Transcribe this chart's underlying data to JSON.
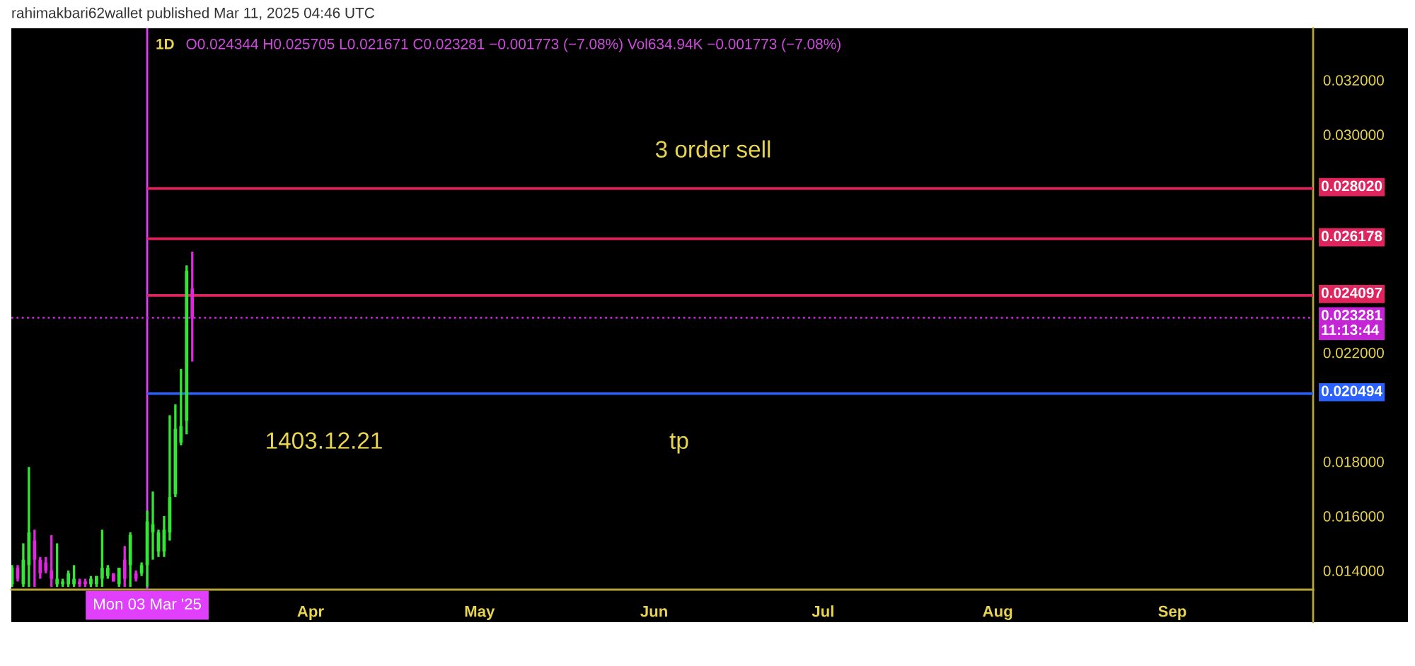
{
  "chart_data": {
    "type": "candlestick",
    "title": "1D",
    "subtitle": "O0.024344 H0.025705 L0.021671 C0.023281 −0.001773 (−7.08%) Vol634.94K −0.001773 (−7.08%)",
    "x": [
      "2025-02-07",
      "2025-02-08",
      "2025-02-09",
      "2025-02-10",
      "2025-02-11",
      "2025-02-12",
      "2025-02-13",
      "2025-02-14",
      "2025-02-15",
      "2025-02-16",
      "2025-02-17",
      "2025-02-18",
      "2025-02-19",
      "2025-02-20",
      "2025-02-21",
      "2025-02-22",
      "2025-02-23",
      "2025-02-24",
      "2025-02-25",
      "2025-02-26",
      "2025-02-27",
      "2025-02-28",
      "2025-03-01",
      "2025-03-02",
      "2025-03-03",
      "2025-03-04",
      "2025-03-05",
      "2025-03-06",
      "2025-03-07",
      "2025-03-08",
      "2025-03-09",
      "2025-03-10",
      "2025-03-11"
    ],
    "ohlc": [
      [
        0.0135,
        0.0142,
        0.0134,
        0.0141
      ],
      [
        0.0141,
        0.0142,
        0.0136,
        0.0137
      ],
      [
        0.0135,
        0.015,
        0.0134,
        0.0144
      ],
      [
        0.0142,
        0.0178,
        0.0134,
        0.0154
      ],
      [
        0.0151,
        0.0155,
        0.0134,
        0.0144
      ],
      [
        0.0144,
        0.0145,
        0.0137,
        0.0139
      ],
      [
        0.0143,
        0.0145,
        0.0139,
        0.014
      ],
      [
        0.014,
        0.0153,
        0.0134,
        0.0137
      ],
      [
        0.0135,
        0.015,
        0.0134,
        0.0137
      ],
      [
        0.0135,
        0.0137,
        0.0134,
        0.0136
      ],
      [
        0.0135,
        0.014,
        0.0134,
        0.0139
      ],
      [
        0.0135,
        0.0142,
        0.0134,
        0.0137
      ],
      [
        0.0136,
        0.0137,
        0.0134,
        0.0135
      ],
      [
        0.0136,
        0.0137,
        0.0134,
        0.0135
      ],
      [
        0.0135,
        0.0138,
        0.0134,
        0.0137
      ],
      [
        0.0135,
        0.0138,
        0.0134,
        0.0138
      ],
      [
        0.0137,
        0.0155,
        0.0134,
        0.0141
      ],
      [
        0.0138,
        0.0142,
        0.0137,
        0.0141
      ],
      [
        0.0139,
        0.0139,
        0.0136,
        0.0136
      ],
      [
        0.0135,
        0.0141,
        0.0134,
        0.0141
      ],
      [
        0.0144,
        0.0149,
        0.0134,
        0.0137
      ],
      [
        0.0142,
        0.0154,
        0.0134,
        0.0153
      ],
      [
        0.0139,
        0.014,
        0.0136,
        0.0137
      ],
      [
        0.0139,
        0.0143,
        0.0138,
        0.0142
      ],
      [
        0.0142,
        0.0162,
        0.0134,
        0.0158
      ],
      [
        0.0154,
        0.0169,
        0.0144,
        0.0157
      ],
      [
        0.0147,
        0.0155,
        0.0145,
        0.0154
      ],
      [
        0.0147,
        0.016,
        0.0145,
        0.0155
      ],
      [
        0.0154,
        0.0197,
        0.0151,
        0.0167
      ],
      [
        0.0168,
        0.0201,
        0.0167,
        0.0192
      ],
      [
        0.0187,
        0.0214,
        0.0186,
        0.0193
      ],
      [
        0.0195,
        0.0252,
        0.019,
        0.025
      ],
      [
        0.024344,
        0.025705,
        0.021671,
        0.023281
      ]
    ],
    "colors": [
      "#33e633",
      "#e026e0",
      "#33e633",
      "#33e633",
      "#e026e0",
      "#e026e0",
      "#e026e0",
      "#e026e0",
      "#33e633",
      "#33e633",
      "#33e633",
      "#33e633",
      "#e026e0",
      "#e026e0",
      "#33e633",
      "#33e633",
      "#33e633",
      "#33e633",
      "#e026e0",
      "#33e633",
      "#e026e0",
      "#33e633",
      "#e026e0",
      "#33e633",
      "#33e633",
      "#33e633",
      "#33e633",
      "#33e633",
      "#33e633",
      "#33e633",
      "#33e633",
      "#33e633",
      "#e026e0"
    ],
    "xlim": [
      "2025-02-06T21:00",
      "2025-09-26"
    ],
    "xticks": [
      {
        "value": "2025-04-01",
        "label": "Apr"
      },
      {
        "value": "2025-05-01",
        "label": "May"
      },
      {
        "value": "2025-06-01",
        "label": "Jun"
      },
      {
        "value": "2025-07-01",
        "label": "Jul"
      },
      {
        "value": "2025-08-01",
        "label": "Aug"
      },
      {
        "value": "2025-09-01",
        "label": "Sep"
      }
    ],
    "ylim": [
      0.0133,
      0.0339
    ],
    "yticks": [
      {
        "value": 0.014,
        "label": "0.014000"
      },
      {
        "value": 0.016,
        "label": "0.016000"
      },
      {
        "value": 0.018,
        "label": "0.018000"
      },
      {
        "value": 0.022,
        "label": "0.022000"
      },
      {
        "value": 0.03,
        "label": "0.030000"
      },
      {
        "value": 0.032,
        "label": "0.032000"
      }
    ],
    "ref_lines": [
      {
        "axis": "x",
        "value": "2025-03-03",
        "label": "Mon 03 Mar '25",
        "color": "#e040fb",
        "line_style": "solid"
      },
      {
        "axis": "y",
        "value": 0.02802,
        "label": "0.028020",
        "color": "#e0245e",
        "line_style": "solid"
      },
      {
        "axis": "y",
        "value": 0.026178,
        "label": "0.026178",
        "color": "#e0245e",
        "line_style": "solid"
      },
      {
        "axis": "y",
        "value": 0.024097,
        "label": "0.024097",
        "color": "#e0245e",
        "line_style": "solid"
      },
      {
        "axis": "y",
        "value": 0.020494,
        "label": "0.020494",
        "color": "#2962ff",
        "line_style": "solid"
      },
      {
        "axis": "y",
        "value": 0.023281,
        "label": "0.023281\n11:13:44",
        "color": "#c423d6",
        "line_style": "dotted"
      }
    ],
    "annotations": [
      "rahimakbari62wallet published Mar 11, 2025 04:46 UTC",
      "3 order sell",
      "1403.12.21",
      "tp"
    ],
    "grid": false
  }
}
